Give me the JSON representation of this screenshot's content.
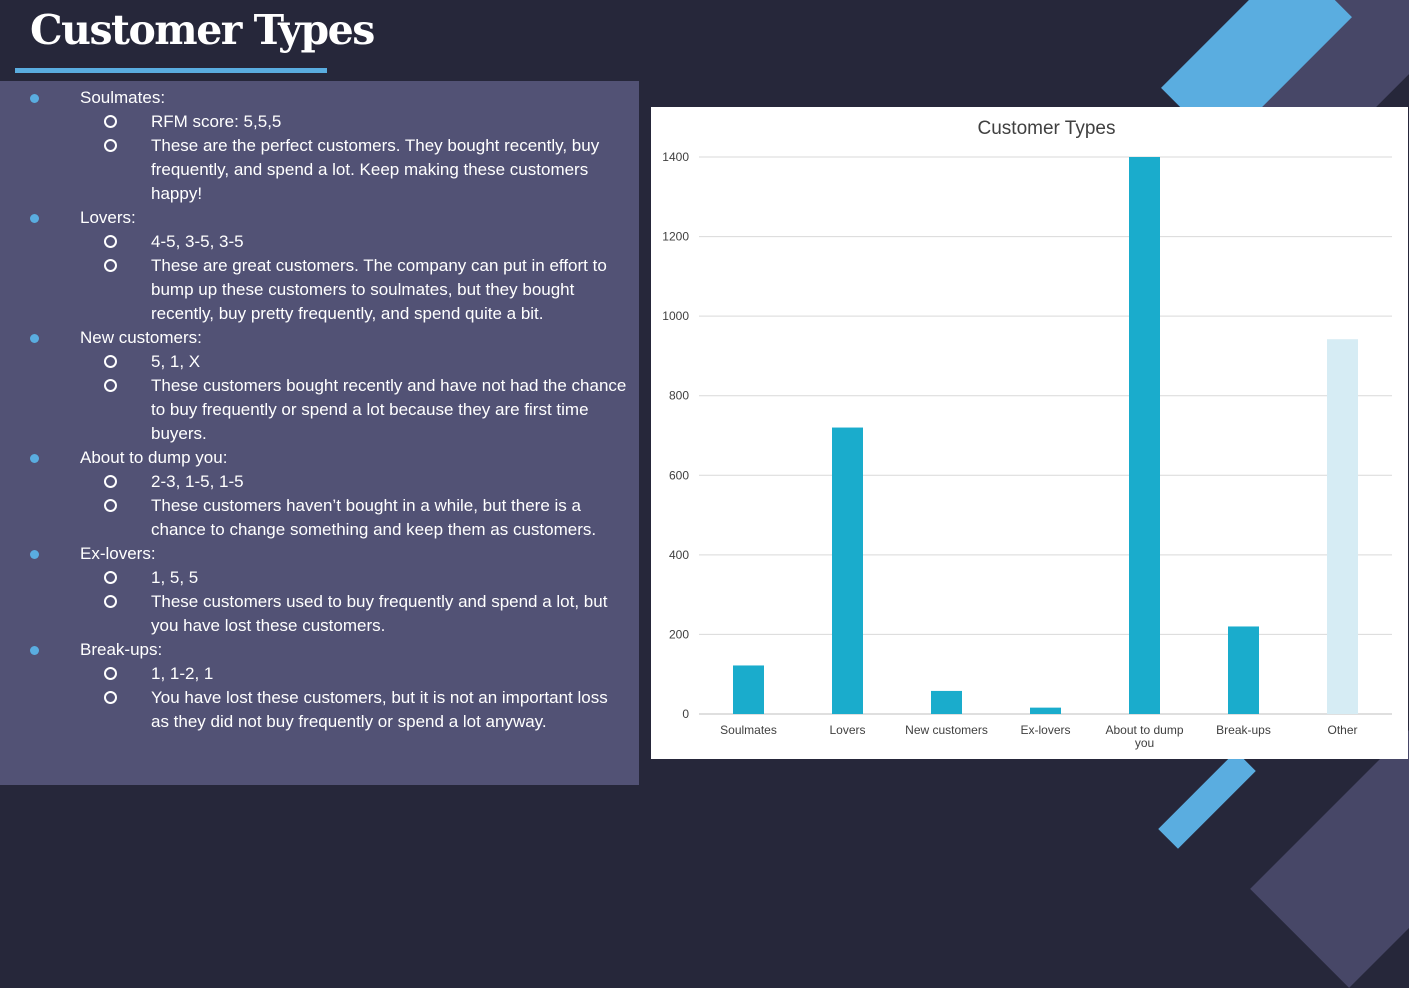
{
  "slide": {
    "title": "Customer Types",
    "colors": {
      "background": "#26273a",
      "panel": "#525275",
      "accent": "#5aade0",
      "bar": "#1aaccc",
      "bar_other": "#d6ecf4"
    }
  },
  "types": [
    {
      "name": "Soulmates:",
      "details": [
        "RFM score: 5,5,5",
        "These are the perfect customers. They bought recently, buy frequently, and spend a lot. Keep making these customers happy!"
      ]
    },
    {
      "name": "Lovers:",
      "details": [
        "4-5, 3-5, 3-5",
        "These are great customers. The company can put in effort to bump up these customers to soulmates, but they bought recently, buy pretty frequently, and spend quite a bit."
      ]
    },
    {
      "name": "New customers:",
      "details": [
        "5, 1, X",
        "These customers bought recently and have not had the chance to buy frequently or spend a lot because they are first time buyers."
      ]
    },
    {
      "name": "About to dump you:",
      "details": [
        "2-3, 1-5, 1-5",
        "These customers haven’t bought in a while, but there is a chance to change something and keep them as customers."
      ]
    },
    {
      "name": "Ex-lovers:",
      "details": [
        "1, 5, 5",
        "These customers used to buy frequently and spend a lot, but you have lost these customers."
      ]
    },
    {
      "name": "Break-ups:",
      "details": [
        "1, 1-2, 1",
        "You have lost these customers, but it is not an important loss as they did not buy frequently or spend a lot anyway."
      ]
    }
  ],
  "chart_data": {
    "type": "bar",
    "title": "Customer Types",
    "categories": [
      "Soulmates",
      "Lovers",
      "New customers",
      "Ex-lovers",
      "About to dump you",
      "Break-ups",
      "Other"
    ],
    "values": [
      122,
      720,
      58,
      16,
      1400,
      220,
      942
    ],
    "ylim": [
      0,
      1400
    ],
    "yticks": [
      0,
      200,
      400,
      600,
      800,
      1000,
      1200,
      1400
    ],
    "grid": true,
    "legend": "none"
  }
}
